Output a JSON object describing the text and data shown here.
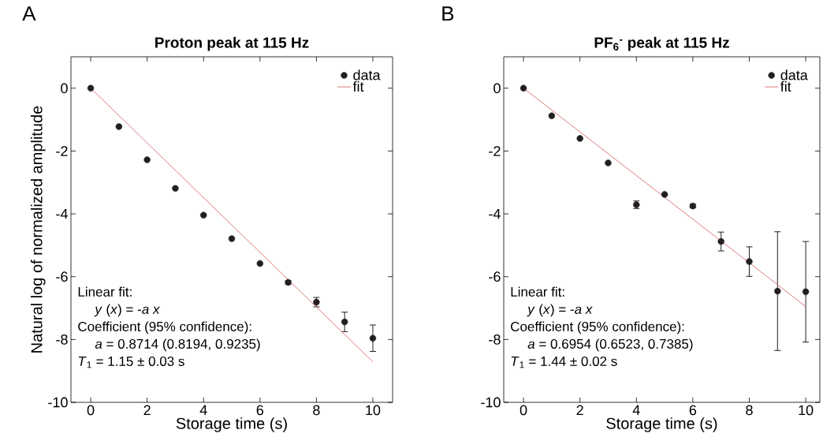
{
  "chart_data": [
    {
      "type": "scatter",
      "title": "Proton peak at 115 Hz",
      "xlabel": "Storage time (s)",
      "ylabel": "Natural log of normalized amplitude",
      "annotations": [
        "A",
        "Linear fit:",
        "*y* (*x*) = -*a x*",
        "Coefficient (95% confidence):",
        "*a* = 0.8714 (0.8194, 0.9235)",
        "*T*$_{1}$ = 1.15 ± 0.03 s"
      ],
      "xlim": [
        -0.7,
        10.7
      ],
      "ylim": [
        -10,
        1
      ],
      "xticks": [
        0,
        2,
        4,
        6,
        8,
        10
      ],
      "yticks": [
        -10,
        -8,
        -6,
        -4,
        -2,
        0
      ],
      "legend": "top right",
      "series": [
        {
          "name": "data",
          "color": "#231f20",
          "x": [
            0,
            1,
            2,
            3,
            4,
            5,
            6,
            7,
            8,
            9,
            10
          ],
          "values": [
            0,
            -1.22,
            -2.28,
            -3.19,
            -4.04,
            -4.79,
            -5.58,
            -6.18,
            -6.81,
            -7.44,
            -7.96
          ],
          "errors": [
            null,
            null,
            null,
            null,
            null,
            null,
            null,
            0.06,
            0.15,
            0.31,
            0.42
          ]
        },
        {
          "name": "fit",
          "type": "line",
          "color": "#e07a7a",
          "x": [
            0,
            10
          ],
          "values": [
            0,
            -8.71
          ]
        }
      ]
    },
    {
      "type": "scatter",
      "title": "PF$_{6}$$^{-}$ peak at 115 Hz",
      "xlabel": "Storage time (s)",
      "annotations": [
        "B",
        "Linear fit:",
        "*y* (*x*) = -*a x*",
        "Coefficient (95% confidence):",
        "*a* = 0.6954 (0.6523, 0.7385)",
        "*T*$_{1}$ = 1.44 ± 0.02 s"
      ],
      "xlim": [
        -0.7,
        10.5
      ],
      "ylim": [
        -10,
        1
      ],
      "xticks": [
        0,
        2,
        4,
        6,
        8,
        10
      ],
      "yticks": [
        -10,
        -8,
        -6,
        -4,
        -2,
        0
      ],
      "legend": "top right",
      "series": [
        {
          "name": "data",
          "color": "#231f20",
          "x": [
            0,
            1,
            2,
            3,
            4,
            5,
            6,
            7,
            8,
            9,
            10
          ],
          "values": [
            0,
            -0.88,
            -1.6,
            -2.38,
            -3.71,
            -3.38,
            -3.75,
            -4.88,
            -5.52,
            -6.46,
            -6.48
          ],
          "errors": [
            null,
            null,
            null,
            null,
            0.12,
            null,
            0.06,
            0.3,
            0.47,
            1.89,
            1.6
          ]
        },
        {
          "name": "fit",
          "type": "line",
          "color": "#e07a7a",
          "x": [
            0,
            10
          ],
          "values": [
            0,
            -6.95
          ]
        }
      ]
    }
  ]
}
